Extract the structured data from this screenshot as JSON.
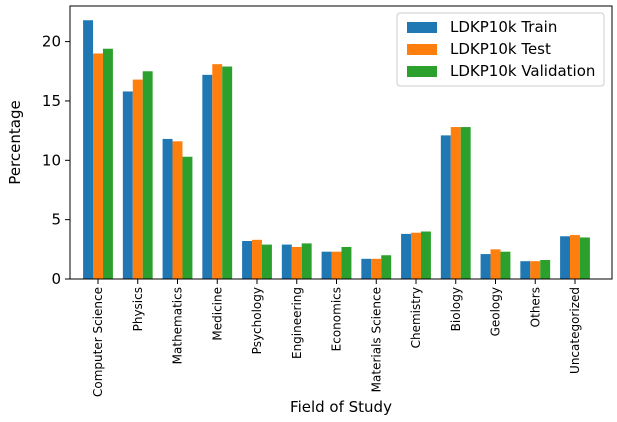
{
  "chart_data": {
    "type": "bar",
    "xlabel": "Field of Study",
    "ylabel": "Percentage",
    "ylim": [
      0,
      23
    ],
    "yticks": [
      0,
      5,
      10,
      15,
      20
    ],
    "legend_position": "top-right",
    "grid": false,
    "categories": [
      "Computer Science",
      "Physics",
      "Mathematics",
      "Medicine",
      "Psychology",
      "Engineering",
      "Economics",
      "Materials Science",
      "Chemistry",
      "Biology",
      "Geology",
      "Others",
      "Uncategorized"
    ],
    "series": [
      {
        "name": "LDKP10k Train",
        "color": "#1f77b4",
        "values": [
          21.8,
          15.8,
          11.8,
          17.2,
          3.2,
          2.9,
          2.3,
          1.7,
          3.8,
          12.1,
          2.1,
          1.5,
          3.6
        ]
      },
      {
        "name": "LDKP10k Test",
        "color": "#ff7f0e",
        "values": [
          19.0,
          16.8,
          11.6,
          18.1,
          3.3,
          2.7,
          2.3,
          1.7,
          3.9,
          12.8,
          2.5,
          1.5,
          3.7
        ]
      },
      {
        "name": "LDKP10k Validation",
        "color": "#2ca02c",
        "values": [
          19.4,
          17.5,
          10.3,
          17.9,
          2.9,
          3.0,
          2.7,
          2.0,
          4.0,
          12.8,
          2.3,
          1.6,
          3.5
        ]
      }
    ]
  }
}
